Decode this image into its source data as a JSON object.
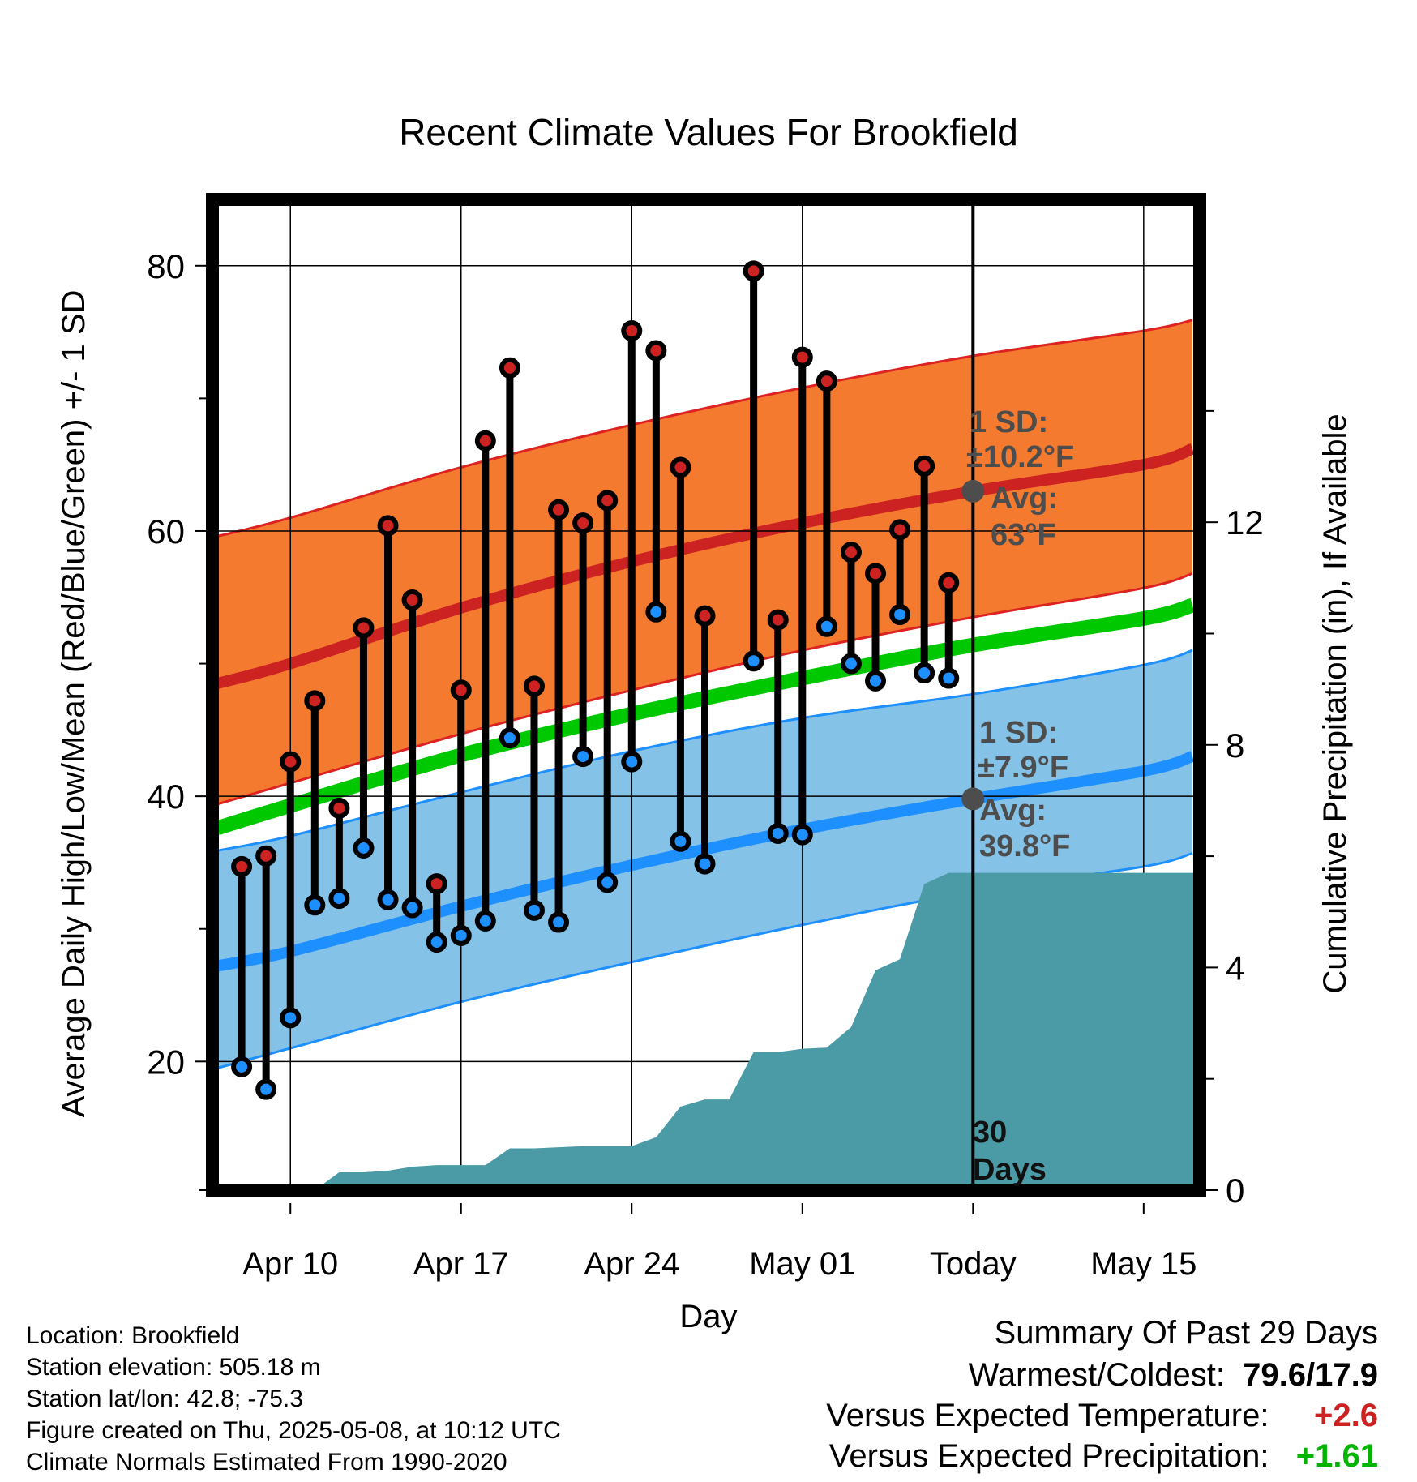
{
  "chart_data": {
    "type": "line",
    "title": "Recent Climate Values For Brookfield",
    "xlabel": "Day",
    "ylabel_left": "Average Daily High/Low/Mean (Red/Blue/Green) +/- 1 SD",
    "ylabel_right": "Cumulative Precipitation (in), If Available",
    "x_tick_labels": [
      "Apr 10",
      "Apr 17",
      "Apr 24",
      "May 01",
      "Today",
      "May 15"
    ],
    "x_tick_days": [
      0,
      7,
      14,
      21,
      28,
      35
    ],
    "x_range_days": [
      -3.2,
      37.3
    ],
    "today_day": 28,
    "y_left_ticks": [
      20,
      40,
      60,
      80
    ],
    "y_left_range": [
      10.3,
      85
    ],
    "y_right_ticks": [
      0,
      4,
      8,
      12
    ],
    "y_right_range": [
      0,
      17.8
    ],
    "grid": true,
    "normals": {
      "days": [
        -3,
        0,
        7,
        14,
        21,
        28,
        35,
        37
      ],
      "high_mean": [
        48.5,
        50.0,
        54.2,
        57.7,
        60.6,
        63.0,
        65.0,
        66.2
      ],
      "high_sd_upper": [
        59.6,
        61.0,
        64.8,
        68.0,
        70.8,
        73.2,
        75.1,
        75.9
      ],
      "high_sd_lower": [
        39.4,
        41.0,
        44.7,
        48.0,
        51.0,
        53.5,
        55.7,
        56.8
      ],
      "mean": [
        37.6,
        39.3,
        43.1,
        46.2,
        48.9,
        51.4,
        53.4,
        54.4
      ],
      "low_mean": [
        27.2,
        28.3,
        31.7,
        34.8,
        37.5,
        39.8,
        41.9,
        43.0
      ],
      "low_sd_upper": [
        35.9,
        37.0,
        40.3,
        43.4,
        45.9,
        47.7,
        49.9,
        51.0
      ],
      "low_sd_lower": [
        19.5,
        21.0,
        24.5,
        27.5,
        30.3,
        32.8,
        34.7,
        35.7
      ]
    },
    "series": [
      {
        "name": "High",
        "color": "#cc2222",
        "days": [
          -2,
          -1,
          0,
          1,
          2,
          3,
          4,
          5,
          6,
          7,
          8,
          9,
          10,
          11,
          12,
          13,
          14,
          15,
          16,
          17,
          18,
          19,
          20,
          21,
          22,
          23,
          24,
          25,
          26,
          27
        ],
        "values": [
          34.7,
          35.5,
          42.6,
          47.2,
          39.1,
          52.7,
          60.4,
          54.8,
          33.4,
          48.0,
          66.8,
          72.3,
          48.3,
          61.6,
          60.6,
          62.3,
          75.1,
          73.6,
          64.8,
          53.6,
          null,
          79.6,
          53.3,
          73.1,
          71.3,
          58.4,
          56.8,
          60.1,
          64.9,
          56.1
        ]
      },
      {
        "name": "Low",
        "color": "#1e8fff",
        "days": [
          -2,
          -1,
          0,
          1,
          2,
          3,
          4,
          5,
          6,
          7,
          8,
          9,
          10,
          11,
          12,
          13,
          14,
          15,
          16,
          17,
          18,
          19,
          20,
          21,
          22,
          23,
          24,
          25,
          26,
          27
        ],
        "values": [
          19.6,
          17.9,
          23.3,
          31.8,
          32.3,
          36.1,
          32.2,
          31.6,
          29.0,
          29.5,
          30.6,
          44.4,
          31.4,
          30.5,
          43.0,
          33.5,
          42.6,
          53.9,
          36.6,
          34.9,
          null,
          50.2,
          37.2,
          37.1,
          52.8,
          50.0,
          48.7,
          53.7,
          49.3,
          48.9
        ]
      }
    ],
    "precipitation": {
      "name": "Cumulative Precipitation",
      "color": "#4a9ba6",
      "days": [
        0,
        1,
        2,
        3,
        4,
        5,
        6,
        7,
        8,
        9,
        10,
        11,
        12,
        13,
        14,
        15,
        16,
        17,
        18,
        19,
        20,
        21,
        22,
        23,
        24,
        25,
        26,
        27,
        28,
        37.3
      ],
      "values": [
        0,
        0,
        0.32,
        0.32,
        0.35,
        0.42,
        0.45,
        0.45,
        0.45,
        0.75,
        0.75,
        0.77,
        0.79,
        0.79,
        0.79,
        0.95,
        1.5,
        1.63,
        1.63,
        2.48,
        2.48,
        2.54,
        2.56,
        2.93,
        3.95,
        4.15,
        5.5,
        5.7,
        5.7,
        5.7
      ]
    },
    "annotations": {
      "high_sd_label": "1 SD:",
      "high_sd_value": "±10.2°F",
      "high_avg_label": "Avg:",
      "high_avg_value": "63°F",
      "high_avg_marker": 63,
      "low_sd_label": "1 SD:",
      "low_sd_value": "±7.9°F",
      "low_avg_label": "Avg:",
      "low_avg_value": "39.8°F",
      "low_avg_marker": 39.8,
      "period_number": "30",
      "period_unit": "Days"
    },
    "colors": {
      "high_band": "#f47a30",
      "high_edge": "#dd2222",
      "high_mean": "#cc2222",
      "low_band": "#85c2e8",
      "low_edge": "#1e8fff",
      "low_mean": "#1e8fff",
      "mean": "#00c800",
      "annotation": "#4d4d4d"
    }
  },
  "metadata": {
    "location": "Location: Brookfield",
    "elevation": "Station elevation: 505.18 m",
    "latlon": "Station lat/lon: 42.8; -75.3",
    "created": "Figure created on Thu, 2025-05-08, at 10:12 UTC",
    "normals": "Climate Normals Estimated From 1990-2020"
  },
  "summary": {
    "heading": "Summary Of Past 29 Days",
    "warmest_coldest_label": "Warmest/Coldest:",
    "warmest_coldest_value": "79.6/17.9",
    "temp_label": "Versus Expected Temperature:",
    "temp_value": "+2.6",
    "temp_color": "#cc2222",
    "precip_label": "Versus Expected Precipitation:",
    "precip_value": "+1.61",
    "precip_color": "#00b400"
  }
}
